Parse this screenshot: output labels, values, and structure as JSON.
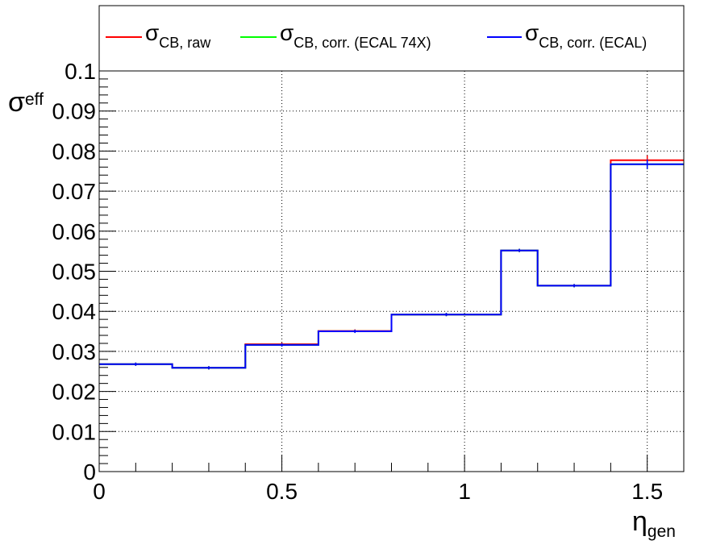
{
  "chart_data": {
    "type": "line",
    "step": true,
    "xlabel": {
      "main": "η",
      "sub": "gen"
    },
    "ylabel": {
      "main": "σ",
      "sub": "eff"
    },
    "xlim": [
      0,
      1.6
    ],
    "ylim": [
      0,
      0.1
    ],
    "xticks": [
      "0",
      "0.5",
      "1",
      "1.5"
    ],
    "yticks": [
      "0",
      "0.01",
      "0.02",
      "0.03",
      "0.04",
      "0.05",
      "0.06",
      "0.07",
      "0.08",
      "0.09",
      "0.1"
    ],
    "grid": true,
    "legend_position": "top",
    "bin_edges": [
      0,
      0.2,
      0.4,
      0.6,
      0.8,
      1.1,
      1.2,
      1.4,
      1.6
    ],
    "series": [
      {
        "name": "σ",
        "sub": "CB, raw",
        "color": "#ff0000",
        "values": [
          0.0268,
          0.0259,
          0.0318,
          0.0351,
          0.0392,
          0.0552,
          0.0464,
          0.0777
        ]
      },
      {
        "name": "σ",
        "sub": "CB, corr. (ECAL 74X)",
        "color": "#00ff00",
        "values": [
          0.0268,
          0.0259,
          0.0316,
          0.035,
          0.0392,
          0.0552,
          0.0464,
          0.0767
        ]
      },
      {
        "name": "σ",
        "sub": "CB, corr. (ECAL)",
        "color": "#0000ff",
        "values": [
          0.0268,
          0.0259,
          0.0316,
          0.035,
          0.0392,
          0.0552,
          0.0464,
          0.0767
        ]
      }
    ]
  }
}
